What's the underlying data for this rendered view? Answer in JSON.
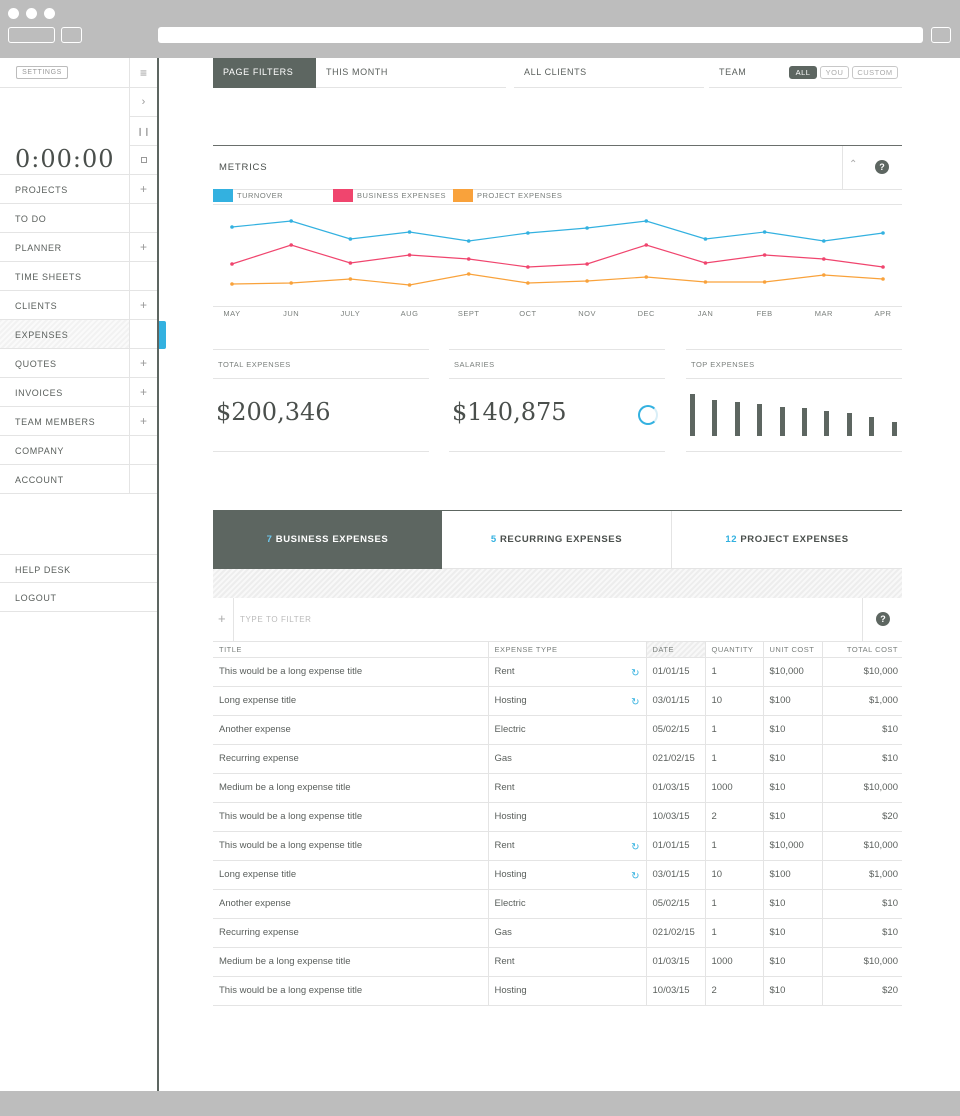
{
  "sidebar": {
    "settings_label": "SETTINGS",
    "timer": "0:00:00",
    "items": [
      {
        "label": "PROJECTS",
        "icon": "plus-icon"
      },
      {
        "label": "TO DO",
        "icon": ""
      },
      {
        "label": "PLANNER",
        "icon": "plus-icon"
      },
      {
        "label": "TIME SHEETS",
        "icon": ""
      },
      {
        "label": "CLIENTS",
        "icon": "plus-icon"
      },
      {
        "label": "EXPENSES",
        "icon": ""
      },
      {
        "label": "QUOTES",
        "icon": "plus-icon"
      },
      {
        "label": "INVOICES",
        "icon": "plus-icon"
      },
      {
        "label": "TEAM MEMBERS",
        "icon": "plus-icon"
      },
      {
        "label": "COMPANY",
        "icon": ""
      },
      {
        "label": "ACCOUNT",
        "icon": ""
      }
    ],
    "bottom_items": [
      "HELP DESK",
      "LOGOUT"
    ],
    "active_item": "EXPENSES"
  },
  "filters": {
    "page_filters_label": "PAGE FILTERS",
    "period": "THIS MONTH",
    "clients": "ALL CLIENTS",
    "team_label": "TEAM",
    "team_options": [
      "ALL",
      "YOU",
      "CUSTOM"
    ],
    "team_selected": "ALL"
  },
  "metrics": {
    "title": "METRICS",
    "help": "?",
    "colors": {
      "turnover": "#33b1e0",
      "business": "#f0456e",
      "project": "#f9a23b"
    }
  },
  "chart_data": {
    "type": "line",
    "title": "METRICS",
    "categories": [
      "MAY",
      "JUN",
      "JULY",
      "AUG",
      "SEPT",
      "OCT",
      "NOV",
      "DEC",
      "JAN",
      "FEB",
      "MAR",
      "APR"
    ],
    "series": [
      {
        "name": "TURNOVER",
        "values": [
          78,
          84,
          66,
          73,
          64,
          72,
          77,
          84,
          66,
          73,
          64,
          72
        ]
      },
      {
        "name": "BUSINESS EXPENSES",
        "values": [
          41,
          60,
          42,
          50,
          46,
          38,
          41,
          60,
          42,
          50,
          46,
          38
        ]
      },
      {
        "name": "PROJECT EXPENSES",
        "values": [
          21,
          22,
          26,
          20,
          31,
          22,
          24,
          28,
          23,
          23,
          30,
          26
        ]
      }
    ],
    "ylim": [
      0,
      100
    ],
    "grid": false,
    "legend": "top-left"
  },
  "cards": {
    "total_expenses": {
      "label": "TOTAL EXPENSES",
      "value": "$200,346"
    },
    "salaries": {
      "label": "SALARIES",
      "value": "$140,875"
    },
    "top_expenses": {
      "label": "TOP EXPENSES",
      "bars": [
        100,
        85,
        80,
        76,
        70,
        66,
        60,
        55,
        46,
        33
      ]
    }
  },
  "tabs": [
    {
      "count": "7",
      "label": "BUSINESS EXPENSES"
    },
    {
      "count": "5",
      "label": "RECURRING EXPENSES"
    },
    {
      "count": "12",
      "label": "PROJECT EXPENSES"
    }
  ],
  "filter_row": {
    "placeholder": "TYPE TO FILTER",
    "add_icon": "+",
    "help": "?"
  },
  "table": {
    "columns": [
      "TITLE",
      "EXPENSE TYPE",
      "DATE",
      "QUANTITY",
      "UNIT COST",
      "TOTAL COST"
    ],
    "rows": [
      {
        "title": "This would be a long expense title",
        "type": "Rent",
        "recurring": true,
        "date": "01/01/15",
        "qty": "1",
        "unit": "$10,000",
        "total": "$10,000"
      },
      {
        "title": "Long expense title",
        "type": "Hosting",
        "recurring": true,
        "date": "03/01/15",
        "qty": "10",
        "unit": "$100",
        "total": "$1,000"
      },
      {
        "title": "Another expense",
        "type": "Electric",
        "recurring": false,
        "date": "05/02/15",
        "qty": "1",
        "unit": "$10",
        "total": "$10"
      },
      {
        "title": "Recurring expense",
        "type": "Gas",
        "recurring": false,
        "date": "021/02/15",
        "qty": "1",
        "unit": "$10",
        "total": "$10"
      },
      {
        "title": "Medium be a long expense title",
        "type": "Rent",
        "recurring": false,
        "date": "01/03/15",
        "qty": "1000",
        "unit": "$10",
        "total": "$10,000"
      },
      {
        "title": "This would be a long expense title",
        "type": "Hosting",
        "recurring": false,
        "date": "10/03/15",
        "qty": "2",
        "unit": "$10",
        "total": "$20"
      },
      {
        "title": "This would be a long expense title",
        "type": "Rent",
        "recurring": true,
        "date": "01/01/15",
        "qty": "1",
        "unit": "$10,000",
        "total": "$10,000"
      },
      {
        "title": "Long expense title",
        "type": "Hosting",
        "recurring": true,
        "date": "03/01/15",
        "qty": "10",
        "unit": "$100",
        "total": "$1,000"
      },
      {
        "title": "Another expense",
        "type": "Electric",
        "recurring": false,
        "date": "05/02/15",
        "qty": "1",
        "unit": "$10",
        "total": "$10"
      },
      {
        "title": "Recurring expense",
        "type": "Gas",
        "recurring": false,
        "date": "021/02/15",
        "qty": "1",
        "unit": "$10",
        "total": "$10"
      },
      {
        "title": "Medium be a long expense title",
        "type": "Rent",
        "recurring": false,
        "date": "01/03/15",
        "qty": "1000",
        "unit": "$10",
        "total": "$10,000"
      },
      {
        "title": "This would be a long expense title",
        "type": "Hosting",
        "recurring": false,
        "date": "10/03/15",
        "qty": "2",
        "unit": "$10",
        "total": "$20"
      }
    ]
  }
}
